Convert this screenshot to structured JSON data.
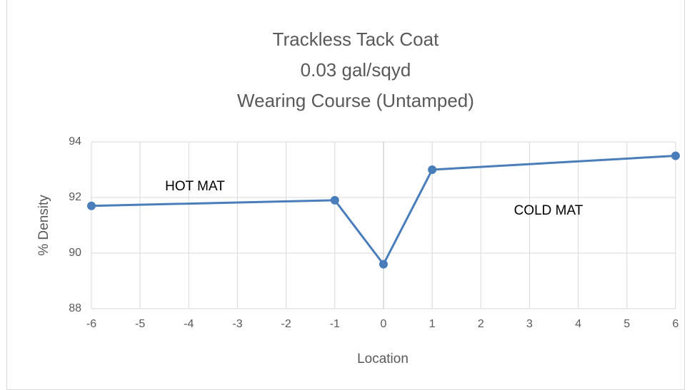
{
  "chart_data": {
    "type": "line",
    "title": [
      "Trackless Tack Coat",
      "0.03 gal/sqyd",
      "Wearing Course (Untamped)"
    ],
    "xlabel": "Location",
    "ylabel": "% Density",
    "annotations": [
      "HOT MAT",
      "COLD MAT"
    ],
    "series": [
      {
        "name": "% Density",
        "color": "#4a7ebb",
        "x": [
          -6,
          -1,
          0,
          1,
          6
        ],
        "values": [
          91.7,
          91.9,
          89.6,
          93.0,
          93.5
        ]
      }
    ],
    "xlim": [
      -6,
      6
    ],
    "xticks": [
      -6,
      -5,
      -4,
      -3,
      -2,
      -1,
      0,
      1,
      2,
      3,
      4,
      5,
      6
    ],
    "ylim": [
      88,
      94
    ],
    "yticks": [
      88,
      90,
      92,
      94
    ],
    "grid": true
  }
}
